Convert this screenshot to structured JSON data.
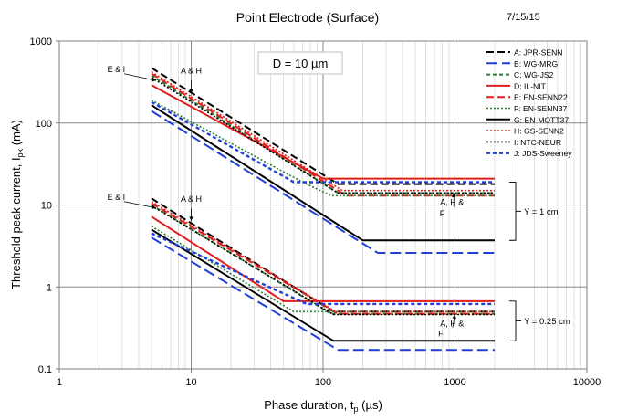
{
  "chart_data": {
    "type": "line",
    "title": "Point Electrode (Surface)",
    "date": "7/15/15",
    "annotation_d": "D = 10 µm",
    "xlabel_main": "Phase duration, t",
    "xlabel_sub": "p",
    "xlabel_tail": " (µs)",
    "ylabel_main": "Threshold peak current, I",
    "ylabel_sub": "pk",
    "ylabel_tail": " (mA)",
    "x_scale": "log",
    "y_scale": "log",
    "xlim": [
      1,
      10000
    ],
    "ylim": [
      0.1,
      1000
    ],
    "x_ticks": [
      "1",
      "10",
      "100",
      "1000",
      "10000"
    ],
    "y_ticks": [
      "1000",
      "100",
      "10",
      "1",
      "0.1"
    ],
    "grid": true,
    "legend_position": "right",
    "series": [
      {
        "name": "A: JPR-SENN",
        "color": "#000000",
        "dash": "8,4",
        "width": 2,
        "upper": [
          [
            5,
            470
          ],
          [
            130,
            18
          ],
          [
            2000,
            18
          ]
        ],
        "lower": [
          [
            5,
            12
          ],
          [
            120,
            0.5
          ],
          [
            2000,
            0.5
          ]
        ]
      },
      {
        "name": "B: WG-MRG",
        "color": "#1f3fd6",
        "dash": "12,5",
        "width": 2,
        "upper": [
          [
            5,
            140
          ],
          [
            260,
            2.6
          ],
          [
            2000,
            2.6
          ]
        ],
        "lower": [
          [
            5,
            4.0
          ],
          [
            130,
            0.17
          ],
          [
            2000,
            0.17
          ]
        ]
      },
      {
        "name": "C: WG-JS2",
        "color": "#2e7d32",
        "dash": "4,3",
        "width": 2,
        "upper": [
          [
            5,
            380
          ],
          [
            130,
            14
          ],
          [
            2000,
            14
          ]
        ],
        "lower": [
          [
            5,
            10
          ],
          [
            115,
            0.47
          ],
          [
            2000,
            0.47
          ]
        ]
      },
      {
        "name": "D: IL-NIT",
        "color": "#e01e1e",
        "dash": "",
        "width": 2,
        "upper": [
          [
            5,
            290
          ],
          [
            100,
            21
          ],
          [
            2000,
            21
          ]
        ],
        "lower": [
          [
            5,
            7.2
          ],
          [
            50,
            0.67
          ],
          [
            2000,
            0.67
          ]
        ]
      },
      {
        "name": "E: EN-SENN22",
        "color": "#e01e1e",
        "dash": "8,4",
        "width": 2,
        "upper": [
          [
            5,
            400
          ],
          [
            150,
            13
          ],
          [
            2000,
            13
          ]
        ],
        "lower": [
          [
            5,
            10.5
          ],
          [
            130,
            0.47
          ],
          [
            2000,
            0.47
          ]
        ]
      },
      {
        "name": "F: EN-SENN37",
        "color": "#2e7d32",
        "dash": "2,2",
        "width": 1.6,
        "upper": [
          [
            5,
            190
          ],
          [
            70,
            19
          ],
          [
            115,
            13
          ],
          [
            2000,
            13
          ]
        ],
        "lower": [
          [
            5,
            5.5
          ],
          [
            60,
            0.5
          ],
          [
            2000,
            0.5
          ]
        ]
      },
      {
        "name": "G: EN-MOTT37",
        "color": "#000000",
        "dash": "",
        "width": 2,
        "upper": [
          [
            5,
            165
          ],
          [
            200,
            3.7
          ],
          [
            2000,
            3.7
          ]
        ],
        "lower": [
          [
            5,
            5.0
          ],
          [
            120,
            0.22
          ],
          [
            2000,
            0.22
          ]
        ]
      },
      {
        "name": "H: GS-SENN2",
        "color": "#e01e1e",
        "dash": "2,2",
        "width": 1.6,
        "upper": [
          [
            5,
            420
          ],
          [
            140,
            15
          ],
          [
            2000,
            15
          ]
        ],
        "lower": [
          [
            5,
            11
          ],
          [
            125,
            0.5
          ],
          [
            2000,
            0.5
          ]
        ]
      },
      {
        "name": "I: NTC-NEUR",
        "color": "#000000",
        "dash": "2,2",
        "width": 1.6,
        "upper": [
          [
            5,
            360
          ],
          [
            130,
            14
          ],
          [
            2000,
            14
          ]
        ],
        "lower": [
          [
            5,
            9.8
          ],
          [
            120,
            0.46
          ],
          [
            2000,
            0.46
          ]
        ]
      },
      {
        "name": "J: JDS-Sweeney",
        "color": "#1f3fd6",
        "dash": "4,3",
        "width": 2.4,
        "upper": [
          [
            5,
            180
          ],
          [
            60,
            19
          ],
          [
            2000,
            19
          ]
        ],
        "lower": [
          [
            5,
            4.5
          ],
          [
            75,
            0.62
          ],
          [
            2000,
            0.62
          ]
        ]
      }
    ],
    "annotations": [
      {
        "text": "E & I",
        "x": 2.7,
        "y": 420
      },
      {
        "text": "A & H",
        "x": 10,
        "y": 400
      },
      {
        "text": "E & I",
        "x": 2.7,
        "y": 11.5
      },
      {
        "text": "A & H",
        "x": 10,
        "y": 11
      },
      {
        "text": "A, H &",
        "x": 950,
        "y": 10
      },
      {
        "text": "F",
        "x": 800,
        "y": 7.3
      },
      {
        "text": "A, H &",
        "x": 950,
        "y": 0.33
      },
      {
        "text": "F",
        "x": 780,
        "y": 0.25
      }
    ],
    "brackets": [
      {
        "label": "Y = 1 cm",
        "y_top": 19,
        "y_bottom": 3.7
      },
      {
        "label": "Y = 0.25 cm",
        "y_top": 0.67,
        "y_bottom": 0.22
      }
    ]
  }
}
